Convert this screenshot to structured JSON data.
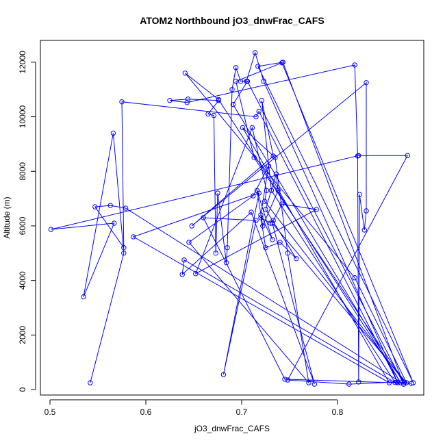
{
  "chart_data": {
    "type": "line",
    "title": "ATOM2 Northbound jO3_dnwFrac_CAFS",
    "xlabel": "jO3_dnwFrac_CAFS",
    "ylabel": "Altitude (m)",
    "xlim": [
      0.49,
      0.89
    ],
    "ylim": [
      -200,
      12800
    ],
    "xticks": [
      0.5,
      0.6,
      0.7,
      0.8
    ],
    "xtick_labels": [
      "0.5",
      "0.6",
      "0.7",
      "0.8"
    ],
    "yticks": [
      0,
      2000,
      4000,
      6000,
      8000,
      10000,
      12000
    ],
    "ytick_labels": [
      "0",
      "2000",
      "4000",
      "6000",
      "8000",
      "10000",
      "12000"
    ],
    "grid": false,
    "colors": {
      "series": "#0000ff",
      "axis": "#000000"
    },
    "series": [
      {
        "style": "lines-and-open-circles",
        "x": [
          0.542,
          0.577,
          0.566,
          0.535,
          0.567,
          0.501,
          0.822,
          0.873,
          0.748,
          0.812,
          0.862,
          0.877,
          0.745,
          0.66,
          0.715,
          0.681,
          0.718,
          0.587,
          0.854,
          0.701,
          0.735,
          0.748,
          0.77,
          0.645,
          0.712,
          0.728,
          0.72,
          0.732,
          0.716,
          0.722,
          0.738,
          0.736,
          0.725,
          0.757,
          0.74,
          0.725,
          0.72,
          0.73,
          0.733,
          0.742,
          0.778,
          0.652,
          0.711,
          0.726,
          0.724,
          0.87,
          0.713,
          0.694,
          0.742,
          0.879,
          0.717,
          0.743,
          0.869,
          0.706,
          0.691,
          0.866,
          0.676,
          0.641,
          0.818,
          0.872,
          0.732,
          0.776,
          0.71,
          0.638,
          0.64,
          0.86,
          0.731,
          0.721,
          0.733,
          0.648,
          0.83,
          0.83,
          0.828,
          0.823,
          0.822,
          0.821,
          0.818,
          0.643,
          0.625,
          0.644,
          0.676,
          0.665,
          0.671,
          0.673,
          0.675,
          0.684,
          0.685,
          0.69,
          0.694,
          0.699,
          0.705,
          0.714,
          0.723,
          0.863,
          0.718,
          0.715,
          0.575,
          0.577,
          0.547,
          0.563,
          0.579,
          0.869
        ],
        "y": [
          250,
          5000,
          9400,
          3400,
          6100,
          5870,
          8580,
          8580,
          350,
          200,
          280,
          230,
          380,
          6300,
          6200,
          550,
          7200,
          5600,
          250,
          9600,
          8500,
          5000,
          250,
          5400,
          7100,
          8200,
          6400,
          5500,
          7300,
          6000,
          7300,
          7900,
          6600,
          4800,
          5400,
          5200,
          6300,
          6100,
          6200,
          6800,
          6600,
          4250,
          9600,
          7300,
          6900,
          270,
          8500,
          11300,
          11980,
          250,
          11850,
          12000,
          200,
          11300,
          10450,
          250,
          10630,
          11600,
          4100,
          250,
          6100,
          200,
          6500,
          4220,
          4750,
          260,
          7300,
          10600,
          8560,
          6000,
          11250,
          6550,
          5850,
          7150,
          280,
          8560,
          11900,
          10520,
          10600,
          10650,
          10600,
          10100,
          10050,
          5000,
          7200,
          4650,
          5200,
          11000,
          11800,
          11300,
          11300,
          12350,
          11300,
          250,
          10200,
          10000,
          10550,
          5200,
          6700,
          6750,
          6650,
          200
        ]
      }
    ]
  }
}
